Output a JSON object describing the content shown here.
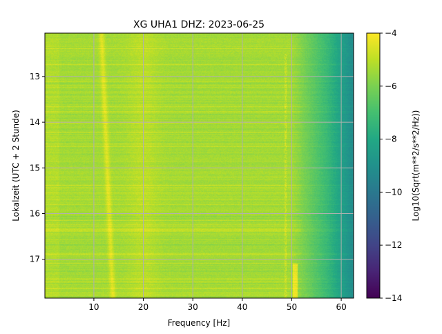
{
  "chart_data": {
    "type": "heatmap",
    "title": "XG UHA1  DHZ: 2023-06-25",
    "xlabel": "Frequency [Hz]",
    "ylabel": "Lokalzeit (UTC + 2 Stunde)",
    "colorbar_label": "Log10(Sqrt(m**2/s**2/Hz))",
    "colormap": "viridis",
    "xlim": [
      0.1,
      62.5
    ],
    "ylim": [
      17.85,
      12.05
    ],
    "y_inverted": true,
    "clim": [
      -14,
      -4
    ],
    "xticks": [
      10,
      20,
      30,
      40,
      50,
      60
    ],
    "yticks": [
      13,
      14,
      15,
      16,
      17
    ],
    "cticks": [
      -4,
      -6,
      -8,
      -10,
      -12,
      -14
    ],
    "grid": true,
    "features": [
      {
        "label": "dominant peak",
        "x_start": 11.0,
        "x_end": 14.0,
        "y_start": 12.05,
        "y_end": 17.85
      },
      {
        "label": "line",
        "x": 48.8,
        "y_start": 12.5,
        "y_end": 17.85
      },
      {
        "label": "high-frequency falloff",
        "x_start": 55,
        "x_end": 62.5,
        "value": -8.5
      }
    ]
  },
  "colors": {
    "grid": "#b0b0b0",
    "axis": "#000000",
    "background": "#ffffff"
  }
}
